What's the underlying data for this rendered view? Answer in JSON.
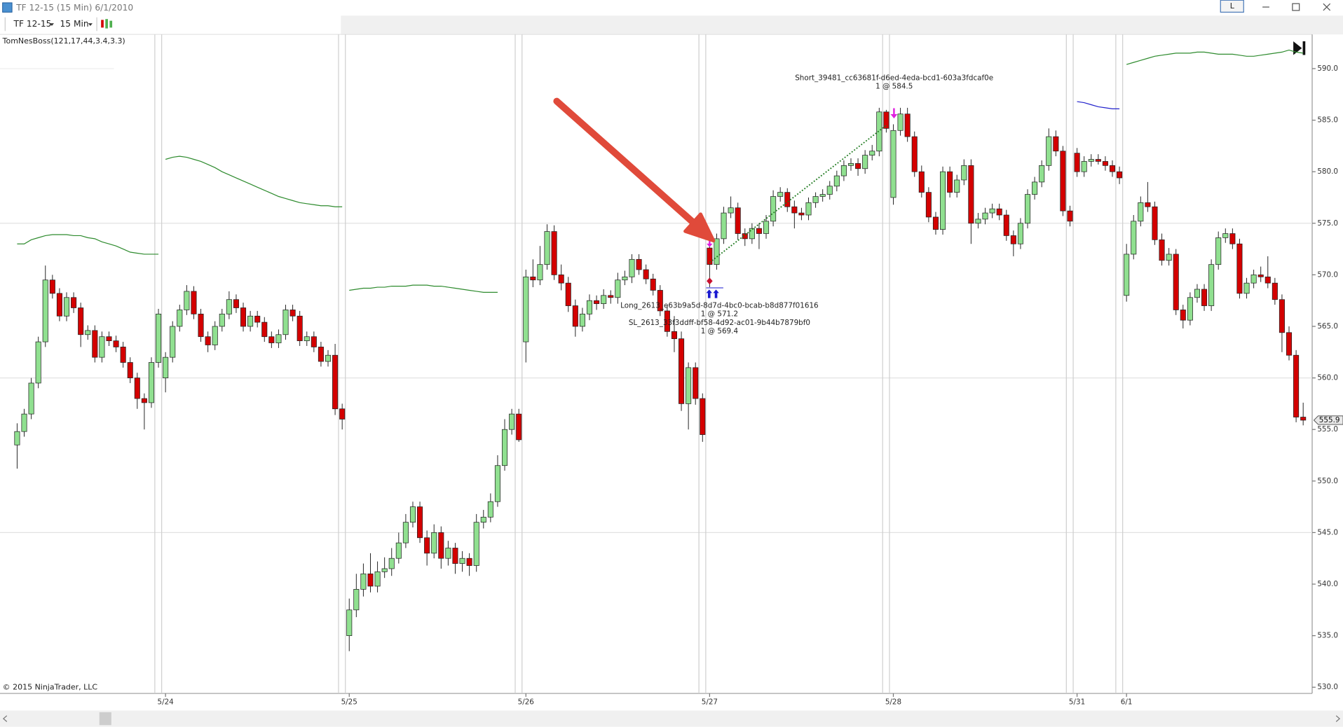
{
  "window_title": "TF 12-15 (15 Min)  6/1/2010",
  "toolbar": {
    "instrument": "TF 12-15",
    "interval": "15 Min",
    "button": "L"
  },
  "chart_data": {
    "type": "candlestick",
    "indicator_label": "TomNesBoss(121,17,44,3.4,3.3)",
    "copyright": "© 2015 NinjaTrader, LLC",
    "categories": [
      null,
      null,
      null,
      null,
      null,
      null,
      null,
      null,
      null,
      null,
      null,
      null,
      null,
      null,
      null,
      null,
      null,
      null,
      null,
      null,
      null,
      "5/24",
      null,
      null,
      null,
      null,
      null,
      null,
      null,
      null,
      null,
      null,
      null,
      null,
      null,
      null,
      null,
      null,
      null,
      null,
      null,
      null,
      null,
      null,
      null,
      null,
      null,
      "5/25",
      null,
      null,
      null,
      null,
      null,
      null,
      null,
      null,
      null,
      null,
      null,
      null,
      null,
      null,
      null,
      null,
      null,
      null,
      null,
      null,
      null,
      null,
      null,
      null,
      "5/26",
      null,
      null,
      null,
      null,
      null,
      null,
      null,
      null,
      null,
      null,
      null,
      null,
      null,
      null,
      null,
      null,
      null,
      null,
      null,
      null,
      null,
      null,
      null,
      null,
      null,
      "5/27",
      null,
      null,
      null,
      null,
      null,
      null,
      null,
      null,
      null,
      null,
      null,
      null,
      null,
      null,
      null,
      null,
      null,
      null,
      null,
      null,
      null,
      null,
      null,
      null,
      null,
      "5/28",
      null,
      null,
      null,
      null,
      null,
      null,
      null,
      null,
      null,
      null,
      null,
      null,
      null,
      null,
      null,
      null,
      null,
      null,
      null,
      null,
      null,
      null,
      null,
      null,
      null,
      "5/31",
      null,
      null,
      null,
      null,
      null,
      null,
      "6/1",
      null,
      null,
      null,
      null,
      null,
      null,
      null,
      null,
      null,
      null,
      null,
      null,
      null,
      null,
      null,
      null,
      null,
      null,
      null,
      null,
      null,
      null,
      null,
      null,
      null
    ],
    "open": [
      553.5,
      554.8,
      556.5,
      559.5,
      563.5,
      569.5,
      568.2,
      566.0,
      567.8,
      566.8,
      564.2,
      564.6,
      562.0,
      564.0,
      563.6,
      563.0,
      561.5,
      560.0,
      558.0,
      557.6,
      561.5,
      560.0,
      562.0,
      565.0,
      566.6,
      568.4,
      566.2,
      564.0,
      563.2,
      565.0,
      566.2,
      567.6,
      566.8,
      565.0,
      566.0,
      565.4,
      564.0,
      563.4,
      564.2,
      566.6,
      566.0,
      563.6,
      564.0,
      563.0,
      561.6,
      562.2,
      557.0,
      535.0,
      537.5,
      539.5,
      541.0,
      539.8,
      541.2,
      541.5,
      542.5,
      544.0,
      546.0,
      547.5,
      544.5,
      543.0,
      545.0,
      542.5,
      543.5,
      542.0,
      542.5,
      541.8,
      546.0,
      546.5,
      548.0,
      551.5,
      555.0,
      556.5,
      563.5,
      569.8,
      569.5,
      571.0,
      574.2,
      570.0,
      569.2,
      567.0,
      565.0,
      566.2,
      567.5,
      567.2,
      568.0,
      567.8,
      569.5,
      569.8,
      571.5,
      570.5,
      569.6,
      568.5,
      566.5,
      564.5,
      563.8,
      557.5,
      561.0,
      558.0,
      572.6,
      571.0,
      573.5,
      576.0,
      576.5,
      574.0,
      573.5,
      574.5,
      574.0,
      575.2,
      577.6,
      578.0,
      576.6,
      576.0,
      575.8,
      577.0,
      577.6,
      577.8,
      578.6,
      579.6,
      580.6,
      580.8,
      580.3,
      581.6,
      582.0,
      585.8,
      577.5,
      584.0,
      585.6,
      583.4,
      580.0,
      578.0,
      575.6,
      574.4,
      580.0,
      578.0,
      579.2,
      580.6,
      575.0,
      575.4,
      576.0,
      576.4,
      575.8,
      573.8,
      573.0,
      575.0,
      577.8,
      579.0,
      580.6,
      583.4,
      582.0,
      576.2,
      581.8,
      580.0,
      581.0,
      581.2,
      581.0,
      580.6,
      580.0,
      568.0,
      572.0,
      575.2,
      577.0,
      576.6,
      573.4,
      571.4,
      572.0,
      566.6,
      565.6,
      567.8,
      568.6,
      567.0,
      571.0,
      573.6,
      574.0,
      573.0,
      568.2,
      569.2,
      570.0,
      569.8,
      569.2,
      567.6,
      564.4,
      562.2,
      556.2
    ],
    "high": [
      555.6,
      557.0,
      560.0,
      564.0,
      570.9,
      570.0,
      568.7,
      568.3,
      568.3,
      567.3,
      565.1,
      565.1,
      564.5,
      564.5,
      564.1,
      563.5,
      562.0,
      560.5,
      558.5,
      562.0,
      566.7,
      562.5,
      565.5,
      567.1,
      569.0,
      568.9,
      566.7,
      564.5,
      565.5,
      566.7,
      568.4,
      568.1,
      567.3,
      566.5,
      566.5,
      565.9,
      564.5,
      564.7,
      567.1,
      567.1,
      566.5,
      564.5,
      564.5,
      563.5,
      562.7,
      563.3,
      557.5,
      538.6,
      541.0,
      542.0,
      543.0,
      542.2,
      542.6,
      543.5,
      545.0,
      546.8,
      548.0,
      548.0,
      545.2,
      545.8,
      545.6,
      544.2,
      544.0,
      543.2,
      543.0,
      546.8,
      547.2,
      548.8,
      552.5,
      556.0,
      557.0,
      557.0,
      570.5,
      571.5,
      572.8,
      574.9,
      574.8,
      571.0,
      569.8,
      567.6,
      566.8,
      568.1,
      568.0,
      568.6,
      568.5,
      570.2,
      570.4,
      572.0,
      572.0,
      571.0,
      570.1,
      569.0,
      567.0,
      566.0,
      564.5,
      561.5,
      561.5,
      558.5,
      573.8,
      574.0,
      576.6,
      577.6,
      577.0,
      574.5,
      575.0,
      575.0,
      575.8,
      578.2,
      578.5,
      578.4,
      577.2,
      576.5,
      577.5,
      578.0,
      578.3,
      579.1,
      580.1,
      581.1,
      581.3,
      581.3,
      582.1,
      582.6,
      586.2,
      586.0,
      584.6,
      586.2,
      586.2,
      583.9,
      580.6,
      578.5,
      576.1,
      580.5,
      580.5,
      579.7,
      581.2,
      581.2,
      576.0,
      576.5,
      576.9,
      576.9,
      576.3,
      574.3,
      575.5,
      578.3,
      579.5,
      581.1,
      584.2,
      584.0,
      582.5,
      576.7,
      582.3,
      581.5,
      581.7,
      581.7,
      581.5,
      581.1,
      580.5,
      573.0,
      575.8,
      577.6,
      579.0,
      577.1,
      574.0,
      572.6,
      572.5,
      567.1,
      568.3,
      569.1,
      569.1,
      571.5,
      574.2,
      574.5,
      574.5,
      573.5,
      569.7,
      570.5,
      570.8,
      571.8,
      569.7,
      568.1,
      565.0,
      562.7,
      557.6
    ],
    "low": [
      551.2,
      554.3,
      556.0,
      559.0,
      563.0,
      567.7,
      565.5,
      565.5,
      566.3,
      563.0,
      563.7,
      561.5,
      561.5,
      563.1,
      562.5,
      561.0,
      559.5,
      557.0,
      555.0,
      557.1,
      561.0,
      558.6,
      561.5,
      564.5,
      566.1,
      565.7,
      563.5,
      562.5,
      562.7,
      564.5,
      565.7,
      566.3,
      564.5,
      564.5,
      564.9,
      563.5,
      562.9,
      562.9,
      563.7,
      565.5,
      563.1,
      563.1,
      562.5,
      561.1,
      561.1,
      556.4,
      555.0,
      533.5,
      536.8,
      538.8,
      539.2,
      539.2,
      540.6,
      540.8,
      542.0,
      543.5,
      545.5,
      544.0,
      541.8,
      542.5,
      541.5,
      541.8,
      541.0,
      541.2,
      540.8,
      541.2,
      545.4,
      546.0,
      547.5,
      551.0,
      554.5,
      553.8,
      561.5,
      568.8,
      569.0,
      570.5,
      569.5,
      568.5,
      566.4,
      564.0,
      564.5,
      565.6,
      566.6,
      566.7,
      567.2,
      567.2,
      569.0,
      569.2,
      570.0,
      569.1,
      568.0,
      566.0,
      564.0,
      562.5,
      556.8,
      555.0,
      557.4,
      553.8,
      568.8,
      570.5,
      573.0,
      575.5,
      573.4,
      572.8,
      573.0,
      572.5,
      573.5,
      574.7,
      577.1,
      576.1,
      574.5,
      575.3,
      575.3,
      576.5,
      577.1,
      577.3,
      578.1,
      579.1,
      580.1,
      579.6,
      579.8,
      581.1,
      581.5,
      583.8,
      576.8,
      583.5,
      582.9,
      579.5,
      577.5,
      575.1,
      573.9,
      573.9,
      577.5,
      577.5,
      578.7,
      573.0,
      574.5,
      574.9,
      575.5,
      575.3,
      573.3,
      571.8,
      572.5,
      574.5,
      577.3,
      578.5,
      580.1,
      581.5,
      575.7,
      574.7,
      579.5,
      579.5,
      580.5,
      580.7,
      580.1,
      579.5,
      578.8,
      567.4,
      571.5,
      574.7,
      576.1,
      572.9,
      570.9,
      570.9,
      566.1,
      564.8,
      565.1,
      567.3,
      566.5,
      566.5,
      570.5,
      573.1,
      572.5,
      567.7,
      567.7,
      568.7,
      569.3,
      568.7,
      567.1,
      562.5,
      561.7,
      555.7,
      555.4
    ],
    "close": [
      554.8,
      556.5,
      559.5,
      563.5,
      569.5,
      568.2,
      566.0,
      567.8,
      566.8,
      564.2,
      564.6,
      562.0,
      564.0,
      563.6,
      563.0,
      561.5,
      560.0,
      558.0,
      557.6,
      561.5,
      566.2,
      562.0,
      565.0,
      566.6,
      568.4,
      566.2,
      564.0,
      563.2,
      565.0,
      566.2,
      567.6,
      566.8,
      565.0,
      566.0,
      565.4,
      564.0,
      563.4,
      564.2,
      566.6,
      566.0,
      563.6,
      564.0,
      563.0,
      561.6,
      562.2,
      557.0,
      556.0,
      537.5,
      539.5,
      541.0,
      539.8,
      541.2,
      541.5,
      542.5,
      544.0,
      546.0,
      547.5,
      544.5,
      543.0,
      545.0,
      542.5,
      543.5,
      542.0,
      542.5,
      541.8,
      546.0,
      546.5,
      548.0,
      551.5,
      555.0,
      556.5,
      554.0,
      569.8,
      569.5,
      571.0,
      574.2,
      570.0,
      569.2,
      567.0,
      565.0,
      566.2,
      567.5,
      567.2,
      568.0,
      567.8,
      569.5,
      569.8,
      571.5,
      570.5,
      569.6,
      568.5,
      566.5,
      564.5,
      563.8,
      557.5,
      561.0,
      558.0,
      554.5,
      571.0,
      573.5,
      576.0,
      576.5,
      574.0,
      573.5,
      574.5,
      574.0,
      575.2,
      577.6,
      578.0,
      576.6,
      576.0,
      575.8,
      577.0,
      577.6,
      577.8,
      578.6,
      579.6,
      580.6,
      580.8,
      580.3,
      581.6,
      582.0,
      585.8,
      584.2,
      584.0,
      585.6,
      583.4,
      580.0,
      578.0,
      575.6,
      574.4,
      580.0,
      578.0,
      579.2,
      580.6,
      575.0,
      575.4,
      576.0,
      576.4,
      575.8,
      573.8,
      573.0,
      575.0,
      577.8,
      579.0,
      580.6,
      583.4,
      582.0,
      576.2,
      575.2,
      580.0,
      581.0,
      581.2,
      581.0,
      580.6,
      580.0,
      579.4,
      572.0,
      575.2,
      577.0,
      576.6,
      573.4,
      571.4,
      572.0,
      566.6,
      565.6,
      567.8,
      568.6,
      567.0,
      571.0,
      573.6,
      574.0,
      573.0,
      568.2,
      569.2,
      570.0,
      569.8,
      569.2,
      567.6,
      564.4,
      562.2,
      556.2,
      555.9
    ],
    "up_color": "#90e090",
    "down_color": "#d40000",
    "ylim": [
      529.4,
      592.9
    ],
    "yticks": [
      {
        "value": 530,
        "label": "530.0"
      },
      {
        "value": 535,
        "label": "535.0"
      },
      {
        "value": 540,
        "label": "540.0"
      },
      {
        "value": 545,
        "label": "545.0"
      },
      {
        "value": 550,
        "label": "550.0"
      },
      {
        "value": 555,
        "label": "555.0"
      },
      {
        "value": 560,
        "label": "560.0"
      },
      {
        "value": 565,
        "label": "565.0"
      },
      {
        "value": 570,
        "label": "570.0"
      },
      {
        "value": 575,
        "label": "575.0"
      },
      {
        "value": 580,
        "label": "580.0"
      },
      {
        "value": 585,
        "label": "585.0"
      },
      {
        "value": 590,
        "label": "590.0"
      }
    ],
    "gridlines": [
      545,
      560,
      575
    ],
    "overlays": [
      {
        "color": "#2e8b2e",
        "x_start": 0,
        "values": [
          573.0,
          573.0,
          573.4,
          573.6,
          573.8,
          573.9,
          573.9,
          573.9,
          573.8,
          573.8,
          573.6,
          573.5,
          573.2,
          573.0,
          572.8,
          572.5,
          572.2,
          572.1,
          572.0,
          572.0,
          572.0
        ]
      },
      {
        "color": "#2e8b2e",
        "x_start": 21,
        "values": [
          581.2,
          581.4,
          581.5,
          581.4,
          581.2,
          581.0,
          580.7,
          580.4,
          580.0,
          579.7,
          579.4,
          579.1,
          578.8,
          578.5,
          578.2,
          577.9,
          577.6,
          577.4,
          577.2,
          577.0,
          576.9,
          576.8,
          576.7,
          576.7,
          576.6,
          576.6
        ]
      },
      {
        "color": "#2e8b2e",
        "x_start": 47,
        "values": [
          568.5,
          568.6,
          568.7,
          568.7,
          568.8,
          568.8,
          568.9,
          568.9,
          568.9,
          569.0,
          569.0,
          569.0,
          568.9,
          568.9,
          568.8,
          568.7,
          568.6,
          568.5,
          568.4,
          568.3,
          568.3,
          568.3
        ]
      },
      {
        "color": "#2222cc",
        "x_start": 150,
        "values": [
          586.8,
          586.7,
          586.5,
          586.3,
          586.2,
          586.1,
          586.1
        ]
      },
      {
        "color": "#2e8b2e",
        "x_start": 157,
        "values": [
          590.4,
          590.6,
          590.8,
          591.0,
          591.2,
          591.3,
          591.4,
          591.5,
          591.5,
          591.5,
          591.6,
          591.6,
          591.5,
          591.4,
          591.4,
          591.4,
          591.3,
          591.2,
          591.2,
          591.3,
          591.4,
          591.5,
          591.6,
          591.8,
          591.6,
          591.5
        ]
      }
    ],
    "trade": {
      "entry_index": 98,
      "entry_price": 571.2,
      "stop_price": 569.4,
      "exit_index": 123,
      "exit_price": 584.5,
      "line_color": "#1f7a1f"
    },
    "annotations": {
      "short_name": "Short_39481_cc63681f-d6ed-4eda-bcd1-603a3fdcaf0e",
      "short_fill": "1 @ 584.5",
      "long_name": "Long_2613_e63b9a5d-8d7d-4bc0-bcab-b8d877f01616",
      "long_fill": "1 @ 571.2",
      "stop_name": "SL_2613_33f3ddff-bf58-4d92-ac01-9b44b7879bf0",
      "stop_fill": "1 @ 569.4"
    }
  }
}
